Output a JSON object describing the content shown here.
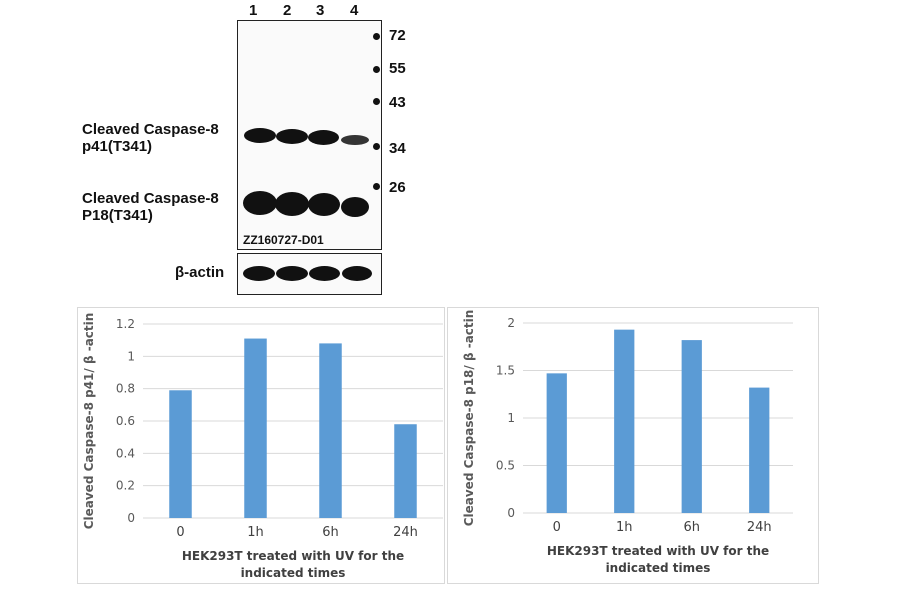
{
  "blot": {
    "lanes": [
      "1",
      "2",
      "3",
      "4"
    ],
    "markers": [
      {
        "label": "72",
        "kda": 72
      },
      {
        "label": "55",
        "kda": 55
      },
      {
        "label": "43",
        "kda": 43
      },
      {
        "label": "34",
        "kda": 34
      },
      {
        "label": "26",
        "kda": 26
      }
    ],
    "bands": [
      {
        "line1": "Cleaved Caspase-8",
        "line2": "p41(T341)"
      },
      {
        "line1": "Cleaved Caspase-8",
        "line2": "P18(T341)"
      }
    ],
    "catalog": "ZZ160727-D01",
    "loading_control": "β-actin"
  },
  "chart_data": [
    {
      "type": "bar",
      "categories": [
        "0",
        "1h",
        "6h",
        "24h"
      ],
      "values": [
        0.79,
        1.11,
        1.08,
        0.58
      ],
      "ylabel": "Cleaved Caspase-8 p41/ β -actin",
      "xlabel_lines": [
        "HEK293T treated with UV for the",
        "indicated times"
      ],
      "ylim": [
        0,
        1.2
      ],
      "yticks": [
        {
          "v": 0,
          "label": "0"
        },
        {
          "v": 0.2,
          "label": "0.2"
        },
        {
          "v": 0.4,
          "label": "0.4"
        },
        {
          "v": 0.6,
          "label": "0.6"
        },
        {
          "v": 0.8,
          "label": "0.8"
        },
        {
          "v": 1,
          "label": "1"
        },
        {
          "v": 1.2,
          "label": "1.2"
        }
      ],
      "grid": true,
      "color": "#5b9bd5"
    },
    {
      "type": "bar",
      "categories": [
        "0",
        "1h",
        "6h",
        "24h"
      ],
      "values": [
        1.47,
        1.93,
        1.82,
        1.32
      ],
      "ylabel": "Cleaved Caspase-8 p18/ β -actin",
      "xlabel_lines": [
        "HEK293T treated with UV for the",
        "indicated times"
      ],
      "ylim": [
        0,
        2
      ],
      "yticks": [
        {
          "v": 0,
          "label": "0"
        },
        {
          "v": 0.5,
          "label": "0.5"
        },
        {
          "v": 1,
          "label": "1"
        },
        {
          "v": 1.5,
          "label": "1.5"
        },
        {
          "v": 2,
          "label": "2"
        }
      ],
      "grid": true,
      "color": "#5b9bd5"
    }
  ]
}
